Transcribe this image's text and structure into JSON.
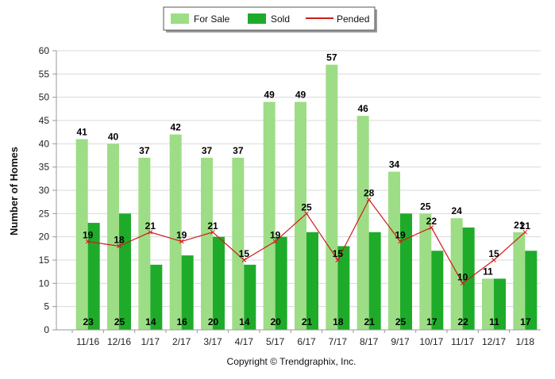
{
  "legend": {
    "for_sale": "For Sale",
    "sold": "Sold",
    "pended": "Pended"
  },
  "copyright": "Copyright © Trendgraphix, Inc.",
  "colors": {
    "for_sale": "#9ddd86",
    "sold": "#1fab2a",
    "pended": "#d11a1a"
  },
  "chart_data": {
    "type": "bar",
    "ylabel": "Number of Homes",
    "xlabel": "",
    "ylim": [
      0,
      60
    ],
    "yticks": [
      0,
      5,
      10,
      15,
      20,
      25,
      30,
      35,
      40,
      45,
      50,
      55,
      60
    ],
    "grid": true,
    "legend_position": "top-center",
    "categories": [
      "11/16",
      "12/16",
      "1/17",
      "2/17",
      "3/17",
      "4/17",
      "5/17",
      "6/17",
      "7/17",
      "8/17",
      "9/17",
      "10/17",
      "11/17",
      "12/17",
      "1/18"
    ],
    "series": [
      {
        "name": "For Sale",
        "type": "bar",
        "values": [
          41,
          40,
          37,
          42,
          37,
          37,
          49,
          49,
          57,
          46,
          34,
          25,
          24,
          11,
          21
        ]
      },
      {
        "name": "Sold",
        "type": "bar",
        "values": [
          23,
          25,
          14,
          16,
          20,
          14,
          20,
          21,
          18,
          21,
          25,
          17,
          22,
          11,
          17
        ]
      },
      {
        "name": "Pended",
        "type": "line",
        "values": [
          19,
          18,
          21,
          19,
          21,
          15,
          19,
          25,
          15,
          28,
          19,
          22,
          10,
          15,
          21
        ]
      }
    ]
  }
}
